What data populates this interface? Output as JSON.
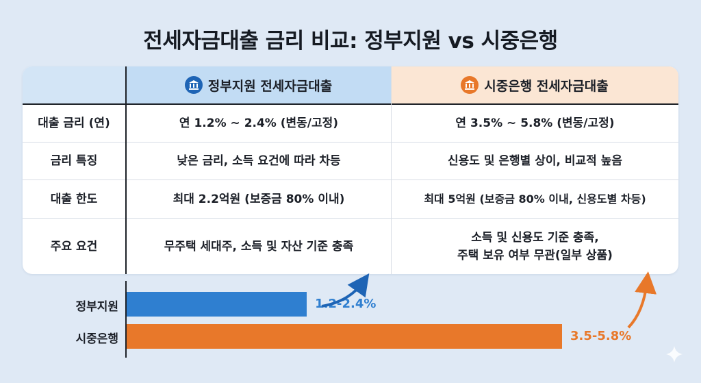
{
  "title": "전세자금대출 금리 비교: 정부지원 vs 시중은행",
  "table": {
    "columns": [
      "정부지원 전세자금대출",
      "시중은행 전세자금대출"
    ],
    "column_icons": [
      "bank-icon",
      "bank-icon"
    ],
    "rows": [
      {
        "label": "대출 금리 (연)",
        "gov": "연 1.2% ~ 2.4% (변동/고정)",
        "bank": "연 3.5% ~ 5.8% (변동/고정)"
      },
      {
        "label": "금리 특징",
        "gov": "낮은 금리, 소득 요건에 따라 차등",
        "bank": "신용도 및 은행별 상이, 비교적 높음"
      },
      {
        "label": "대출 한도",
        "gov": "최대 2.2억원 (보증금 80% 이내)",
        "bank": "최대 5억원 (보증금 80% 이내, 신용도별 차등)"
      },
      {
        "label": "주요 요건",
        "gov": "무주택 세대주, 소득 및 자산 기준 충족",
        "bank_line1": "소득 및 신용도 기준 충족,",
        "bank_line2": "주택 보유 여부 무관(일부 상품)"
      }
    ]
  },
  "chart_data": {
    "type": "bar",
    "orientation": "horizontal",
    "categories": [
      "정부지원",
      "시중은행"
    ],
    "ranges": [
      [
        1.2,
        2.4
      ],
      [
        3.5,
        5.8
      ]
    ],
    "value_labels": [
      "1.2-2.4%",
      "3.5-5.8%"
    ],
    "colors": [
      "#2f7fd0",
      "#e8782a"
    ],
    "xlim": [
      0,
      5.8
    ]
  }
}
